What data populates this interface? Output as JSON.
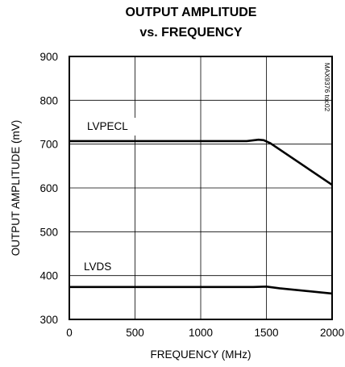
{
  "chart_data": {
    "type": "line",
    "title": [
      "OUTPUT AMPLITUDE",
      "vs. FREQUENCY"
    ],
    "xlabel": "FREQUENCY (MHz)",
    "ylabel": "OUTPUT AMPLITUDE (mV)",
    "xlim": [
      0,
      2000
    ],
    "ylim": [
      300,
      900
    ],
    "xticks": [
      0,
      500,
      1000,
      1500,
      2000
    ],
    "yticks": [
      300,
      400,
      500,
      600,
      700,
      800,
      900
    ],
    "grid": true,
    "side_note": "MAX9376 toc02",
    "series": [
      {
        "name": "LVPECL",
        "x": [
          0,
          1350,
          1440,
          1480,
          1530,
          2000
        ],
        "y": [
          707,
          707,
          710,
          709,
          702,
          607
        ]
      },
      {
        "name": "LVDS",
        "x": [
          0,
          1400,
          1500,
          1600,
          2000
        ],
        "y": [
          374,
          374,
          375,
          371,
          359
        ]
      }
    ]
  }
}
